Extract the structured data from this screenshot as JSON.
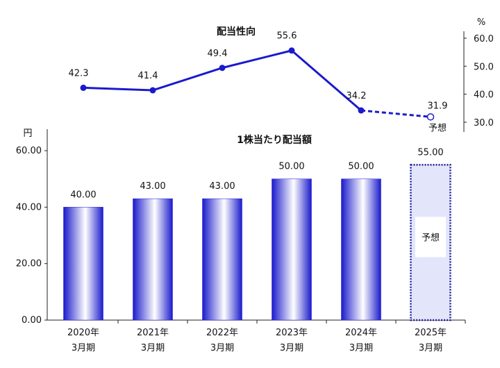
{
  "chart_data": [
    {
      "type": "line",
      "title": "配当性向",
      "unit_label": "%",
      "categories": [
        "2020年3月期",
        "2021年3月期",
        "2022年3月期",
        "2023年3月期",
        "2024年3月期",
        "2025年3月期"
      ],
      "values": [
        42.3,
        41.4,
        49.4,
        55.6,
        34.2,
        31.9
      ],
      "value_labels": [
        "42.3",
        "41.4",
        "49.4",
        "55.6",
        "34.2",
        "31.9"
      ],
      "forecast_index": 5,
      "forecast_label": "予想",
      "ylim": [
        30.0,
        60.0
      ],
      "yticks": [
        "30.0",
        "40.0",
        "50.0",
        "60.0"
      ],
      "axis_side": "right",
      "color": "#1a1acc"
    },
    {
      "type": "bar",
      "title": "1株当たり配当額",
      "unit_label": "円",
      "categories": [
        "2020年3月期",
        "2021年3月期",
        "2022年3月期",
        "2023年3月期",
        "2024年3月期",
        "2025年3月期"
      ],
      "category_lines": [
        [
          "2020年",
          "3月期"
        ],
        [
          "2021年",
          "3月期"
        ],
        [
          "2022年",
          "3月期"
        ],
        [
          "2023年",
          "3月期"
        ],
        [
          "2024年",
          "3月期"
        ],
        [
          "2025年",
          "3月期"
        ]
      ],
      "values": [
        40.0,
        43.0,
        43.0,
        50.0,
        50.0,
        55.0
      ],
      "value_labels": [
        "40.00",
        "43.00",
        "43.00",
        "50.00",
        "50.00",
        "55.00"
      ],
      "forecast_index": 5,
      "forecast_label": "予想",
      "ylim": [
        0,
        60
      ],
      "yticks": [
        "0.00",
        "20.00",
        "40.00",
        "60.00"
      ],
      "color": "#1a1acc"
    }
  ]
}
